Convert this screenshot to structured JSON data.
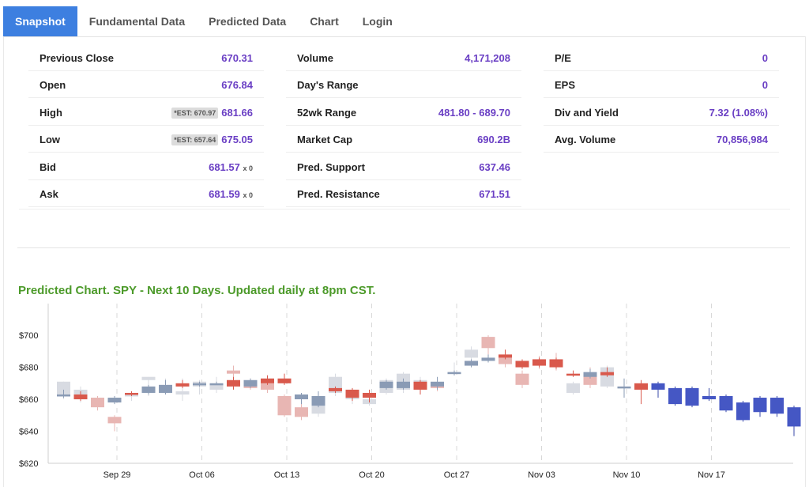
{
  "tabs": [
    "Snapshot",
    "Fundamental Data",
    "Predicted Data",
    "Chart",
    "Login"
  ],
  "stats": {
    "col1": [
      {
        "label": "Previous Close",
        "value": "670.31"
      },
      {
        "label": "Open",
        "value": "676.84"
      },
      {
        "label": "High",
        "value": "681.66",
        "est": "*EST: 670.97"
      },
      {
        "label": "Low",
        "value": "675.05",
        "est": "*EST: 657.64"
      },
      {
        "label": "Bid",
        "value": "681.57",
        "mult": "x 0"
      },
      {
        "label": "Ask",
        "value": "681.59",
        "mult": "x 0"
      }
    ],
    "col2": [
      {
        "label": "Volume",
        "value": "4,171,208"
      },
      {
        "label": "Day's Range",
        "value": ""
      },
      {
        "label": "52wk Range",
        "value": "481.80 - 689.70"
      },
      {
        "label": "Market Cap",
        "value": "690.2B"
      },
      {
        "label": "Pred. Support",
        "value": "637.46"
      },
      {
        "label": "Pred. Resistance",
        "value": "671.51"
      }
    ],
    "col3": [
      {
        "label": "P/E",
        "value": "0"
      },
      {
        "label": "EPS",
        "value": "0"
      },
      {
        "label": "Div and Yield",
        "value": "7.32 (1.08%)"
      },
      {
        "label": "Avg. Volume",
        "value": "70,856,984"
      }
    ]
  },
  "chart_title": "Predicted Chart. SPY - Next 10 Days. Updated daily at 8pm CST.",
  "colors": {
    "accent": "#3d7fe0",
    "value_purple": "#6a3fc4",
    "title_green": "#4c9a2a",
    "actual_up": "#8a9bb5",
    "actual_down": "#d9594c",
    "pred_up": "#d8dbe2",
    "pred_down": "#e8b6b3",
    "forecast": "#4557c4"
  },
  "chart_data": {
    "type": "candlestick",
    "title": "Predicted Chart. SPY - Next 10 Days. Updated daily at 8pm CST.",
    "y_ticks": [
      "$620",
      "$640",
      "$660",
      "$680",
      "$700"
    ],
    "ylim": [
      620,
      704
    ],
    "x_ticks": [
      {
        "label": "Sep 29",
        "index": 4
      },
      {
        "label": "Oct 06",
        "index": 9
      },
      {
        "label": "Oct 13",
        "index": 14
      },
      {
        "label": "Oct 20",
        "index": 19
      },
      {
        "label": "Oct 27",
        "index": 24
      },
      {
        "label": "Nov 03",
        "index": 29
      },
      {
        "label": "Nov 10",
        "index": 34
      },
      {
        "label": "Nov 17",
        "index": 39
      }
    ],
    "predicted": [
      {
        "i": 0,
        "open": 662,
        "close": 671,
        "high": 671,
        "low": 660
      },
      {
        "i": 1,
        "open": 660,
        "close": 666,
        "high": 668,
        "low": 658
      },
      {
        "i": 2,
        "open": 661,
        "close": 655,
        "high": 662,
        "low": 653
      },
      {
        "i": 3,
        "open": 649,
        "close": 645,
        "high": 650,
        "low": 640
      },
      {
        "i": 4,
        "open": 662,
        "close": 663,
        "high": 664,
        "low": 659
      },
      {
        "i": 5,
        "open": 672,
        "close": 674,
        "high": 674,
        "low": 662
      },
      {
        "i": 6,
        "open": 665,
        "close": 668,
        "high": 673,
        "low": 663
      },
      {
        "i": 7,
        "open": 663,
        "close": 665,
        "high": 673,
        "low": 659
      },
      {
        "i": 8,
        "open": 668,
        "close": 671,
        "high": 672,
        "low": 663
      },
      {
        "i": 9,
        "open": 666,
        "close": 670,
        "high": 674,
        "low": 664
      },
      {
        "i": 10,
        "open": 678,
        "close": 676,
        "high": 681,
        "low": 673
      },
      {
        "i": 11,
        "open": 670,
        "close": 667,
        "high": 673,
        "low": 666
      },
      {
        "i": 12,
        "open": 670,
        "close": 666,
        "high": 675,
        "low": 664
      },
      {
        "i": 13,
        "open": 662,
        "close": 650,
        "high": 663,
        "low": 649
      },
      {
        "i": 14,
        "open": 655,
        "close": 649,
        "high": 658,
        "low": 647
      },
      {
        "i": 15,
        "open": 651,
        "close": 661,
        "high": 662,
        "low": 649
      },
      {
        "i": 16,
        "open": 664,
        "close": 674,
        "high": 676,
        "low": 662
      },
      {
        "i": 17,
        "open": 660,
        "close": 665,
        "high": 667,
        "low": 657
      },
      {
        "i": 18,
        "open": 657,
        "close": 660,
        "high": 661,
        "low": 656
      },
      {
        "i": 19,
        "open": 664,
        "close": 672,
        "high": 673,
        "low": 663
      },
      {
        "i": 20,
        "open": 666,
        "close": 676,
        "high": 677,
        "low": 664
      },
      {
        "i": 21,
        "open": 667,
        "close": 672,
        "high": 674,
        "low": 665
      },
      {
        "i": 22,
        "open": 670,
        "close": 667,
        "high": 672,
        "low": 665
      },
      {
        "i": 23,
        "open": 677,
        "close": 677,
        "high": 683,
        "low": 675
      },
      {
        "i": 24,
        "open": 686,
        "close": 691,
        "high": 693,
        "low": 683
      },
      {
        "i": 25,
        "open": 699,
        "close": 692,
        "high": 700,
        "low": 688
      },
      {
        "i": 26,
        "open": 686,
        "close": 682,
        "high": 688,
        "low": 680
      },
      {
        "i": 27,
        "open": 676,
        "close": 669,
        "high": 678,
        "low": 667
      },
      {
        "i": 28,
        "open": 685,
        "close": 681,
        "high": 687,
        "low": 679
      },
      {
        "i": 29,
        "open": 683,
        "close": 682,
        "high": 689,
        "low": 678
      },
      {
        "i": 30,
        "open": 664,
        "close": 670,
        "high": 671,
        "low": 663
      },
      {
        "i": 31,
        "open": 676,
        "close": 669,
        "high": 680,
        "low": 667
      },
      {
        "i": 32,
        "open": 668,
        "close": 680,
        "high": 681,
        "low": 667
      }
    ],
    "actual": [
      {
        "i": 0,
        "open": 663,
        "close": 663,
        "high": 666,
        "low": 661
      },
      {
        "i": 1,
        "open": 663,
        "close": 660,
        "high": 665,
        "low": 659
      },
      {
        "i": 3,
        "open": 658,
        "close": 661,
        "high": 662,
        "low": 657
      },
      {
        "i": 4,
        "open": 664,
        "close": 663,
        "high": 665,
        "low": 662
      },
      {
        "i": 5,
        "open": 664,
        "close": 668,
        "high": 669,
        "low": 663
      },
      {
        "i": 6,
        "open": 664,
        "close": 669,
        "high": 672,
        "low": 663
      },
      {
        "i": 7,
        "open": 670,
        "close": 668,
        "high": 672,
        "low": 667
      },
      {
        "i": 8,
        "open": 670,
        "close": 670,
        "high": 671,
        "low": 668
      },
      {
        "i": 9,
        "open": 670,
        "close": 670,
        "high": 671,
        "low": 669
      },
      {
        "i": 10,
        "open": 672,
        "close": 668,
        "high": 674,
        "low": 666
      },
      {
        "i": 11,
        "open": 668,
        "close": 672,
        "high": 673,
        "low": 667
      },
      {
        "i": 12,
        "open": 673,
        "close": 670,
        "high": 675,
        "low": 669
      },
      {
        "i": 13,
        "open": 673,
        "close": 670,
        "high": 676,
        "low": 669
      },
      {
        "i": 14,
        "open": 660,
        "close": 663,
        "high": 664,
        "low": 657
      },
      {
        "i": 15,
        "open": 656,
        "close": 662,
        "high": 665,
        "low": 655
      },
      {
        "i": 16,
        "open": 667,
        "close": 665,
        "high": 668,
        "low": 664
      },
      {
        "i": 17,
        "open": 666,
        "close": 661,
        "high": 667,
        "low": 659
      },
      {
        "i": 18,
        "open": 664,
        "close": 661,
        "high": 666,
        "low": 658
      },
      {
        "i": 19,
        "open": 667,
        "close": 671,
        "high": 672,
        "low": 666
      },
      {
        "i": 20,
        "open": 667,
        "close": 671,
        "high": 673,
        "low": 666
      },
      {
        "i": 21,
        "open": 671,
        "close": 666,
        "high": 672,
        "low": 663
      },
      {
        "i": 22,
        "open": 668,
        "close": 671,
        "high": 674,
        "low": 666
      },
      {
        "i": 23,
        "open": 676,
        "close": 677,
        "high": 678,
        "low": 675
      },
      {
        "i": 24,
        "open": 681,
        "close": 684,
        "high": 685,
        "low": 680
      },
      {
        "i": 25,
        "open": 684,
        "close": 686,
        "high": 688,
        "low": 683
      },
      {
        "i": 26,
        "open": 688,
        "close": 686,
        "high": 691,
        "low": 685
      },
      {
        "i": 27,
        "open": 684,
        "close": 680,
        "high": 685,
        "low": 679
      },
      {
        "i": 28,
        "open": 685,
        "close": 681,
        "high": 686,
        "low": 680
      },
      {
        "i": 29,
        "open": 685,
        "close": 680,
        "high": 686,
        "low": 679
      },
      {
        "i": 30,
        "open": 676,
        "close": 675,
        "high": 678,
        "low": 674
      },
      {
        "i": 31,
        "open": 674,
        "close": 677,
        "high": 679,
        "low": 673
      },
      {
        "i": 32,
        "open": 677,
        "close": 675,
        "high": 680,
        "low": 674
      },
      {
        "i": 33,
        "open": 667,
        "close": 668,
        "high": 673,
        "low": 661
      },
      {
        "i": 34,
        "open": 670,
        "close": 666,
        "high": 672,
        "low": 657
      }
    ],
    "forecast": [
      {
        "i": 35,
        "open": 670,
        "close": 666,
        "high": 671,
        "low": 661
      },
      {
        "i": 36,
        "open": 667,
        "close": 657,
        "high": 668,
        "low": 656
      },
      {
        "i": 37,
        "open": 667,
        "close": 656,
        "high": 668,
        "low": 655
      },
      {
        "i": 38,
        "open": 662,
        "close": 660,
        "high": 667,
        "low": 659
      },
      {
        "i": 39,
        "open": 662,
        "close": 653,
        "high": 663,
        "low": 652
      },
      {
        "i": 40,
        "open": 658,
        "close": 647,
        "high": 659,
        "low": 646
      },
      {
        "i": 41,
        "open": 661,
        "close": 652,
        "high": 662,
        "low": 649
      },
      {
        "i": 42,
        "open": 661,
        "close": 651,
        "high": 662,
        "low": 649
      },
      {
        "i": 43,
        "open": 655,
        "close": 643,
        "high": 656,
        "low": 637
      }
    ]
  }
}
